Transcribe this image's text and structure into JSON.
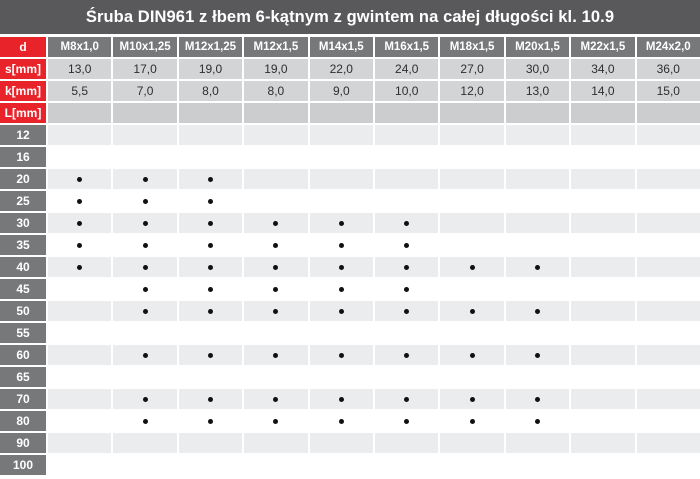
{
  "title": "Śruba DIN961 z łbem 6-kątnym z gwintem na całej długości kl. 10.9",
  "colors": {
    "title_bg": "#59595b",
    "red": "#e8232a",
    "header_gray": "#77787a",
    "dim_row_bg": "#d3d4d6",
    "l_row_bg": "#cccdcf",
    "alt_row_bg": "#ebeced",
    "white_row_bg": "#ffffff",
    "dot": "#111111"
  },
  "table": {
    "corner_label": "d",
    "columns": [
      "M8x1,0",
      "M10x1,25",
      "M12x1,25",
      "M12x1,5",
      "M14x1,5",
      "M16x1,5",
      "M18x1,5",
      "M20x1,5",
      "M22x1,5",
      "M24x2,0"
    ],
    "dimension_rows": [
      {
        "label": "s[mm]",
        "values": [
          "13,0",
          "17,0",
          "19,0",
          "19,0",
          "22,0",
          "24,0",
          "27,0",
          "30,0",
          "34,0",
          "36,0"
        ]
      },
      {
        "label": "k[mm]",
        "values": [
          "5,5",
          "7,0",
          "8,0",
          "8,0",
          "9,0",
          "10,0",
          "12,0",
          "13,0",
          "14,0",
          "15,0"
        ]
      }
    ],
    "length_section_label": "L[mm]",
    "length_rows": [
      {
        "label": "12",
        "dots": [
          0,
          0,
          0,
          0,
          0,
          0,
          0,
          0,
          0,
          0
        ]
      },
      {
        "label": "16",
        "dots": [
          0,
          0,
          0,
          0,
          0,
          0,
          0,
          0,
          0,
          0
        ]
      },
      {
        "label": "20",
        "dots": [
          1,
          1,
          1,
          0,
          0,
          0,
          0,
          0,
          0,
          0
        ]
      },
      {
        "label": "25",
        "dots": [
          1,
          1,
          1,
          0,
          0,
          0,
          0,
          0,
          0,
          0
        ]
      },
      {
        "label": "30",
        "dots": [
          1,
          1,
          1,
          1,
          1,
          1,
          0,
          0,
          0,
          0
        ]
      },
      {
        "label": "35",
        "dots": [
          1,
          1,
          1,
          1,
          1,
          1,
          0,
          0,
          0,
          0
        ]
      },
      {
        "label": "40",
        "dots": [
          1,
          1,
          1,
          1,
          1,
          1,
          1,
          1,
          0,
          0
        ]
      },
      {
        "label": "45",
        "dots": [
          0,
          1,
          1,
          1,
          1,
          1,
          0,
          0,
          0,
          0
        ]
      },
      {
        "label": "50",
        "dots": [
          0,
          1,
          1,
          1,
          1,
          1,
          1,
          1,
          0,
          0
        ]
      },
      {
        "label": "55",
        "dots": [
          0,
          0,
          0,
          0,
          0,
          0,
          0,
          0,
          0,
          0
        ]
      },
      {
        "label": "60",
        "dots": [
          0,
          1,
          1,
          1,
          1,
          1,
          1,
          1,
          0,
          0
        ]
      },
      {
        "label": "65",
        "dots": [
          0,
          0,
          0,
          0,
          0,
          0,
          0,
          0,
          0,
          0
        ]
      },
      {
        "label": "70",
        "dots": [
          0,
          1,
          1,
          1,
          1,
          1,
          1,
          1,
          0,
          0
        ]
      },
      {
        "label": "80",
        "dots": [
          0,
          1,
          1,
          1,
          1,
          1,
          1,
          1,
          0,
          0
        ]
      },
      {
        "label": "90",
        "dots": [
          0,
          0,
          0,
          0,
          0,
          0,
          0,
          0,
          0,
          0
        ]
      },
      {
        "label": "100",
        "dots": [
          0,
          0,
          0,
          0,
          0,
          0,
          0,
          0,
          0,
          0
        ]
      }
    ]
  }
}
